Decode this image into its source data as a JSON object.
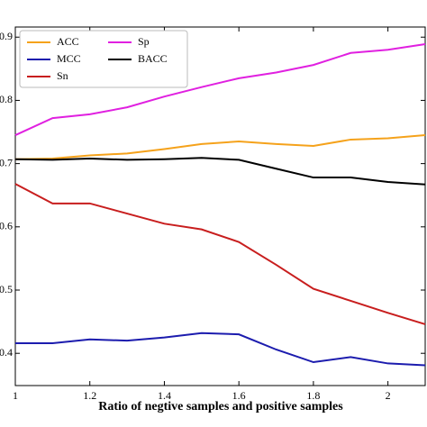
{
  "chart_data": {
    "type": "line",
    "x_label": "Ratio of negtive samples and positive samples",
    "x": [
      1.0,
      1.1,
      1.2,
      1.3,
      1.4,
      1.5,
      1.6,
      1.7,
      1.8,
      1.9,
      2.0,
      2.1
    ],
    "xlim": [
      1.0,
      2.1
    ],
    "xticks": [
      1.0,
      1.2,
      1.4,
      1.6,
      1.8,
      2.0
    ],
    "ylim": [
      0.349,
      0.916
    ],
    "yticks": [
      0.4,
      0.5,
      0.6,
      0.7,
      0.8,
      0.9
    ],
    "legend": "upper left",
    "series": [
      {
        "name": "ACC",
        "color": "#f5a21b",
        "values": [
          0.707,
          0.708,
          0.713,
          0.716,
          0.723,
          0.731,
          0.735,
          0.731,
          0.728,
          0.738,
          0.74,
          0.745
        ]
      },
      {
        "name": "MCC",
        "color": "#1c1cae",
        "values": [
          0.416,
          0.416,
          0.422,
          0.42,
          0.425,
          0.432,
          0.43,
          0.406,
          0.386,
          0.394,
          0.384,
          0.381
        ]
      },
      {
        "name": "Sn",
        "color": "#c81e1e",
        "values": [
          0.668,
          0.637,
          0.637,
          0.621,
          0.605,
          0.596,
          0.576,
          0.54,
          0.502,
          0.483,
          0.464,
          0.446
        ]
      },
      {
        "name": "Sp",
        "color": "#e020e0",
        "values": [
          0.745,
          0.772,
          0.778,
          0.789,
          0.806,
          0.821,
          0.835,
          0.844,
          0.856,
          0.875,
          0.88,
          0.889
        ]
      },
      {
        "name": "BACC",
        "color": "#000000",
        "values": [
          0.707,
          0.706,
          0.708,
          0.706,
          0.707,
          0.709,
          0.706,
          0.692,
          0.678,
          0.678,
          0.671,
          0.667
        ]
      }
    ]
  }
}
